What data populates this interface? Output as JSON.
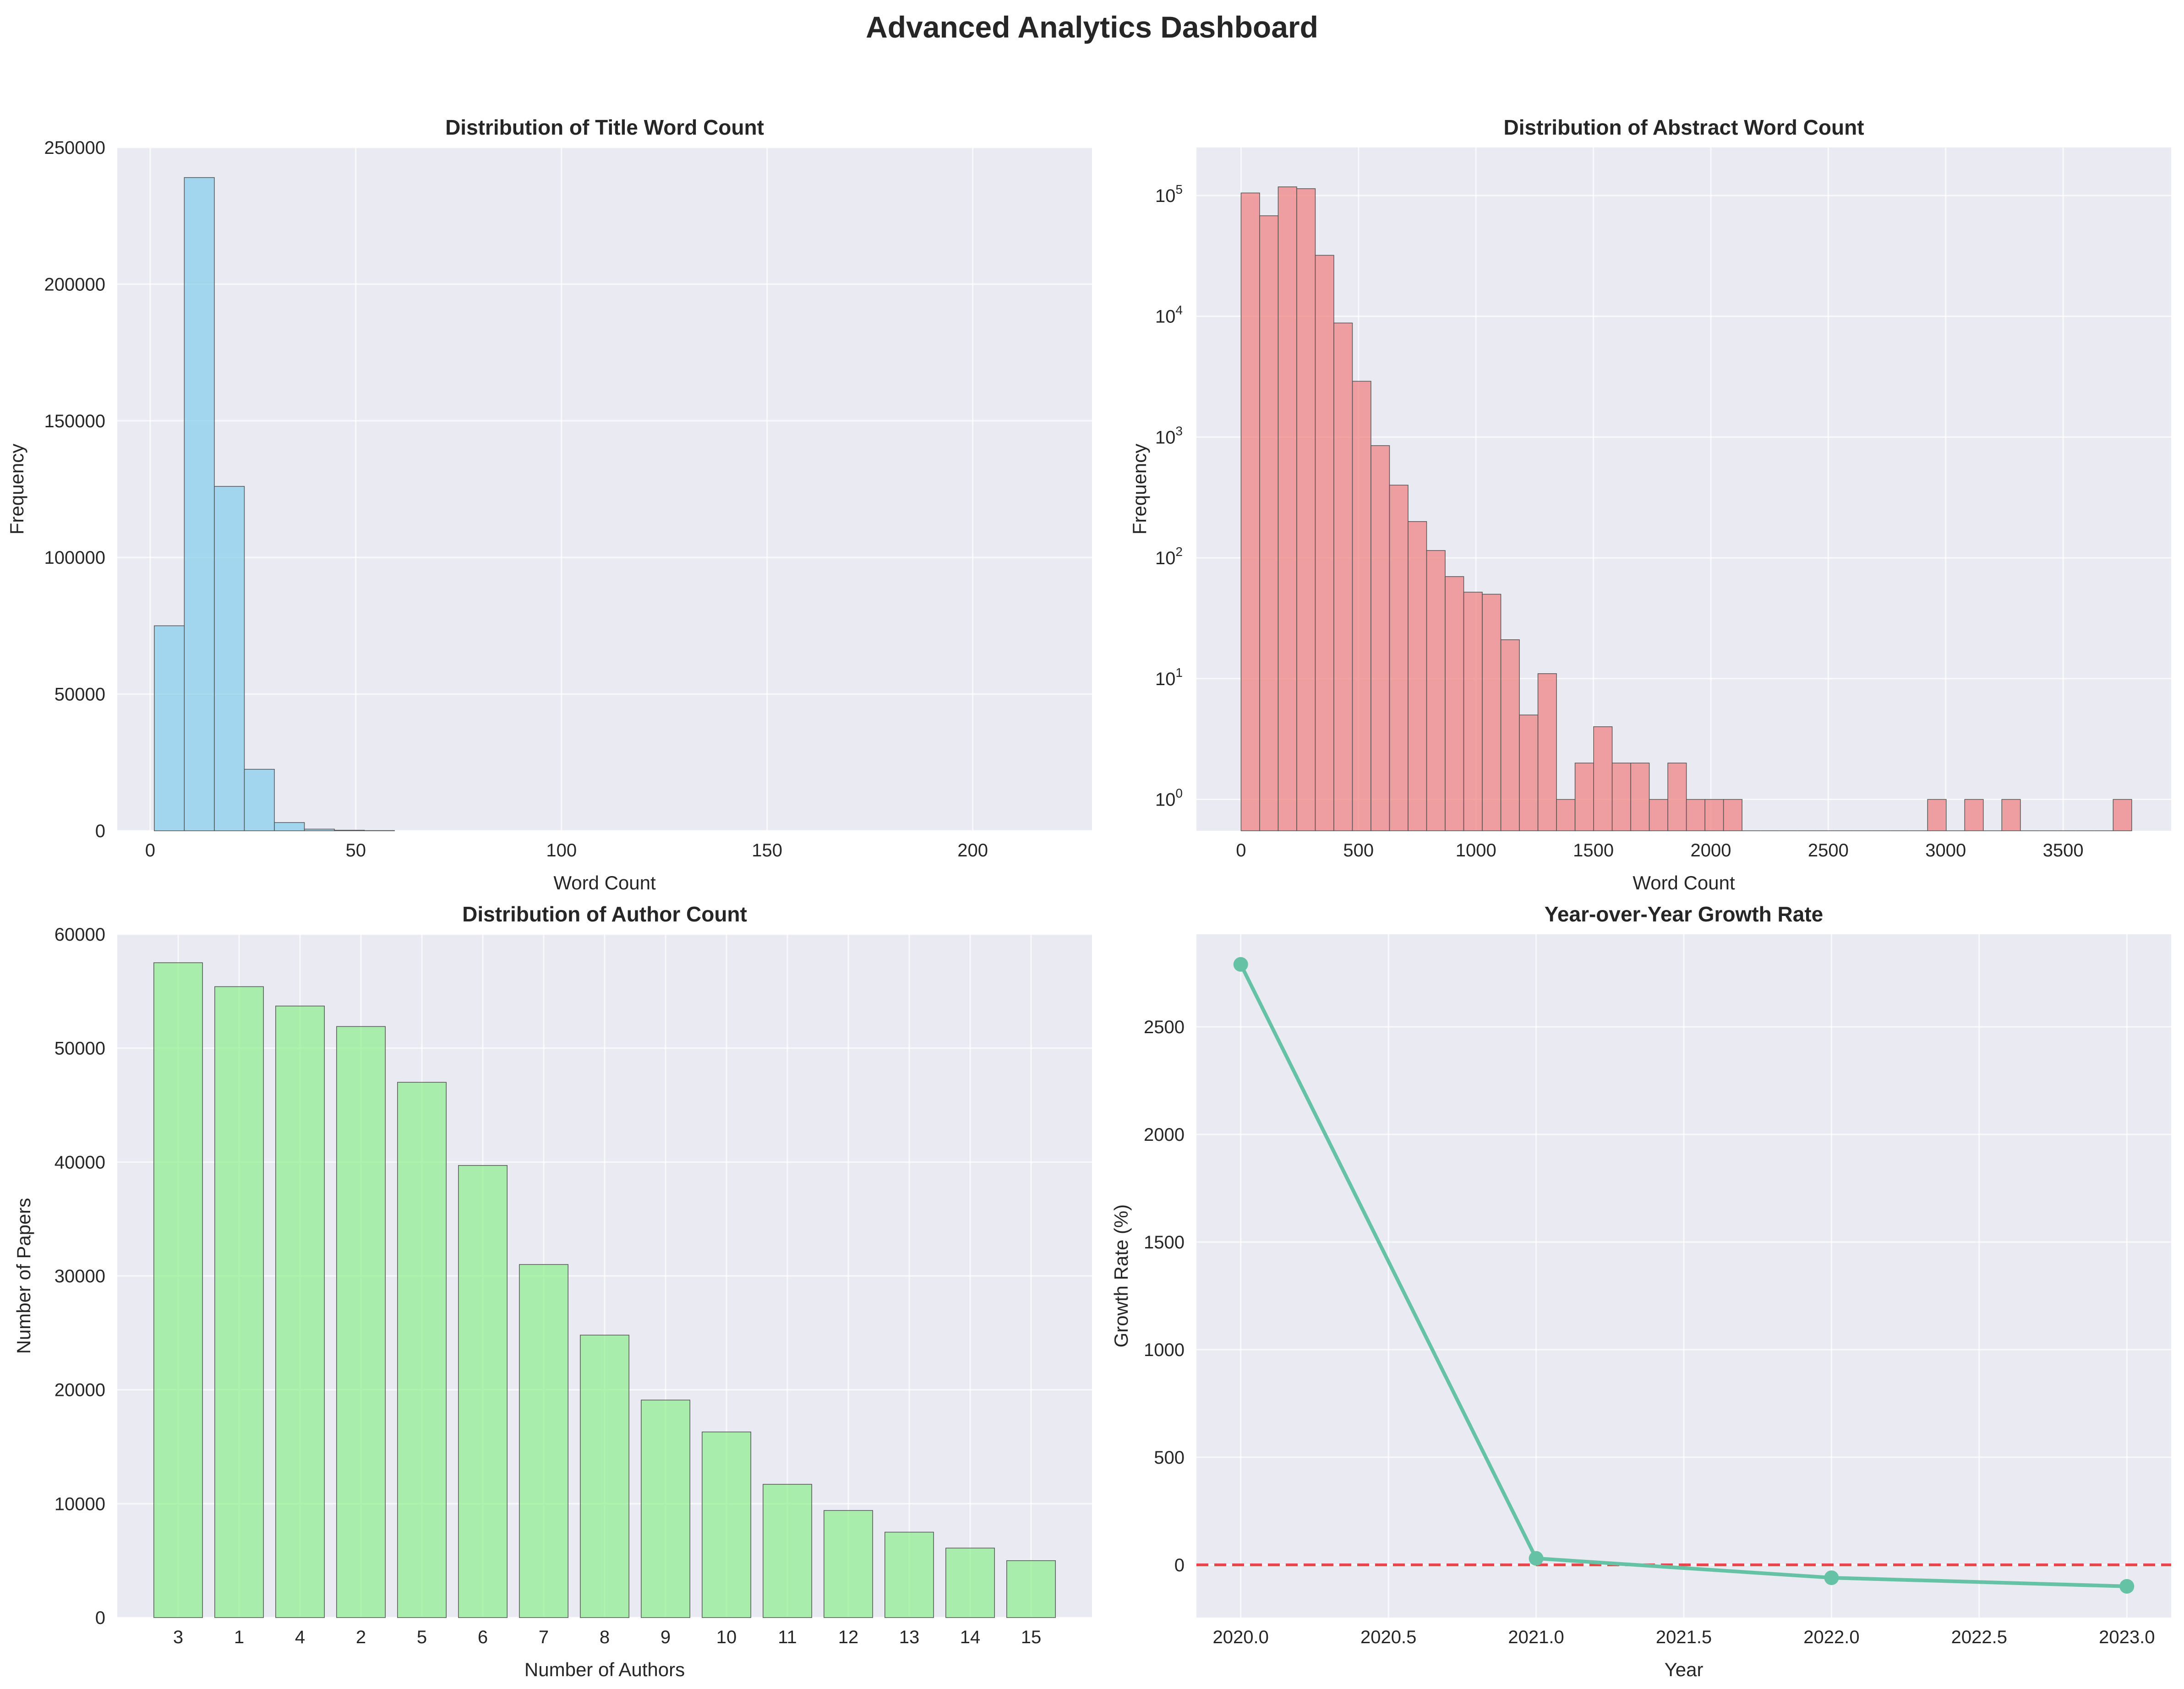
{
  "dashboard": {
    "title": "Advanced Analytics Dashboard"
  },
  "colors": {
    "plot_bg": "#EAEAF2",
    "grid": "#FFFFFF",
    "text": "#262626",
    "edge": "#555555",
    "title_hist": "#87CEEB",
    "abstract_hist": "#F08080",
    "author_bar": "#90EE90",
    "growth_line": "#66C2A5",
    "zero_line": "#E8272A"
  },
  "chart_data": [
    {
      "id": "title",
      "type": "bar",
      "title": "Distribution of Title Word Count",
      "xlabel": "Word Count",
      "ylabel": "Frequency",
      "xlim": [
        -8,
        229
      ],
      "ylim": [
        0,
        250000
      ],
      "xticks": [
        0,
        50,
        100,
        150,
        200
      ],
      "yticks": [
        0,
        50000,
        100000,
        150000,
        200000,
        250000
      ],
      "bin_edges": [
        1,
        8.3,
        15.6,
        22.9,
        30.2,
        37.5,
        44.8,
        52.1,
        59.4
      ],
      "values": [
        75000,
        239000,
        126000,
        22500,
        3000,
        600,
        200,
        80
      ],
      "grid": true
    },
    {
      "id": "abstract",
      "type": "bar",
      "title": "Distribution of Abstract Word Count",
      "xlabel": "Word Count",
      "ylabel": "Frequency",
      "yscale": "log",
      "xlim": [
        -190,
        3960
      ],
      "ylim": [
        0.55,
        250000
      ],
      "xticks": [
        0,
        500,
        1000,
        1500,
        2000,
        2500,
        3000,
        3500
      ],
      "ytick_labels": [
        {
          "value": 1,
          "base": "10",
          "exp": "0"
        },
        {
          "value": 10,
          "base": "10",
          "exp": "1"
        },
        {
          "value": 100,
          "base": "10",
          "exp": "2"
        },
        {
          "value": 1000,
          "base": "10",
          "exp": "3"
        },
        {
          "value": 10000,
          "base": "10",
          "exp": "4"
        },
        {
          "value": 100000,
          "base": "10",
          "exp": "5"
        }
      ],
      "bin_start": 0,
      "bin_width": 79,
      "values": [
        105000,
        68000,
        118000,
        114000,
        32000,
        8800,
        2900,
        850,
        400,
        200,
        115,
        70,
        52,
        50,
        21,
        5,
        11,
        1,
        2,
        4,
        2,
        2,
        1,
        2,
        1,
        1,
        1,
        0,
        0,
        0,
        0,
        0,
        0,
        0,
        0,
        0,
        0,
        1,
        0,
        1,
        0,
        1,
        0,
        0,
        0,
        0,
        0,
        1
      ],
      "grid": true
    },
    {
      "id": "authors",
      "type": "bar",
      "title": "Distribution of Author Count",
      "xlabel": "Number of Authors",
      "ylabel": "Number of Papers",
      "ylim": [
        0,
        60000
      ],
      "yticks": [
        0,
        10000,
        20000,
        30000,
        40000,
        50000,
        60000
      ],
      "categories": [
        "3",
        "1",
        "4",
        "2",
        "5",
        "6",
        "7",
        "8",
        "9",
        "10",
        "11",
        "12",
        "13",
        "14",
        "15"
      ],
      "values": [
        57500,
        55400,
        53700,
        51900,
        47000,
        39700,
        31000,
        24800,
        19100,
        16300,
        11700,
        9400,
        7500,
        6100,
        5000
      ],
      "grid": true
    },
    {
      "id": "growth",
      "type": "line",
      "title": "Year-over-Year Growth Rate",
      "xlabel": "Year",
      "ylabel": "Growth Rate (%)",
      "xlim": [
        2019.85,
        2023.15
      ],
      "ylim": [
        -245,
        2930
      ],
      "xticks": [
        "2020.0",
        "2020.5",
        "2021.0",
        "2021.5",
        "2022.0",
        "2022.5",
        "2023.0"
      ],
      "yticks": [
        0,
        500,
        1000,
        1500,
        2000,
        2500
      ],
      "x": [
        2020,
        2021,
        2022,
        2023
      ],
      "y": [
        2790,
        30,
        -60,
        -100
      ],
      "reference_line_y": 0,
      "grid": true
    }
  ]
}
